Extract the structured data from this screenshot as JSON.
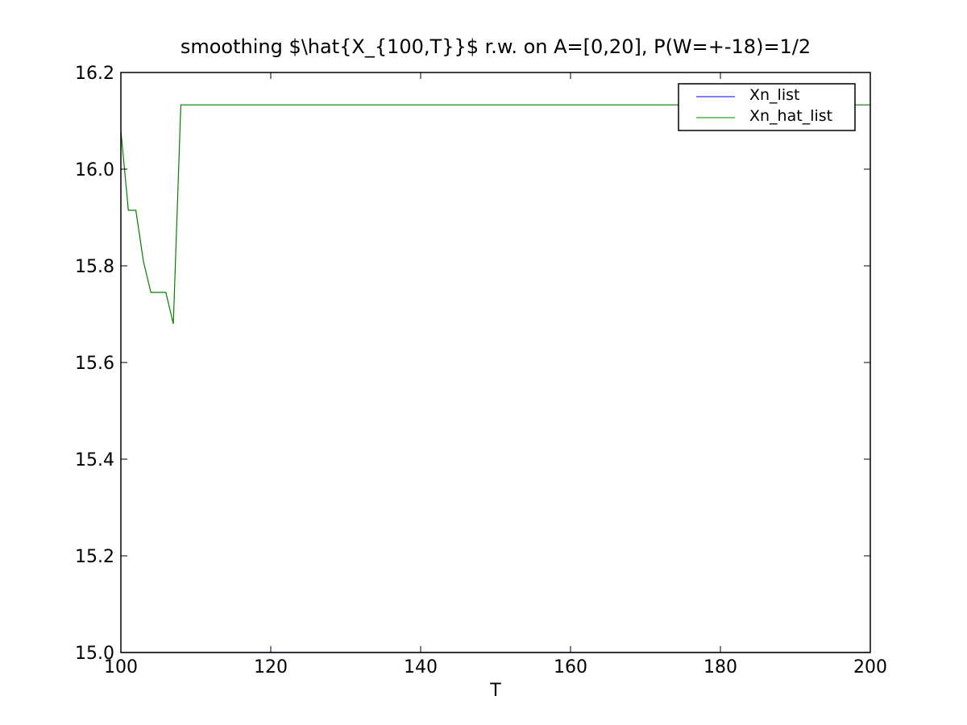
{
  "chart_data": {
    "type": "line",
    "title": "smoothing $\\hat{X_{100,T}}$ r.w. on A=[0,20], P(W=+-18)=1/2",
    "xlabel": "T",
    "ylabel": "",
    "xlim": [
      100,
      200
    ],
    "ylim": [
      15.0,
      16.2
    ],
    "xticks": [
      100,
      120,
      140,
      160,
      180,
      200
    ],
    "yticks": [
      15.0,
      15.2,
      15.4,
      15.6,
      15.8,
      16.0,
      16.2
    ],
    "xtick_labels": [
      "100",
      "120",
      "140",
      "160",
      "180",
      "200"
    ],
    "ytick_labels": [
      "15.0",
      "15.2",
      "15.4",
      "15.6",
      "15.8",
      "16.0",
      "16.2"
    ],
    "grid": false,
    "legend_position": "top-right",
    "series": [
      {
        "name": "Xn_list",
        "color": "#0000ff",
        "x": [
          100,
          200
        ],
        "y": [
          15.0,
          15.0
        ]
      },
      {
        "name": "Xn_hat_list",
        "color": "#008000",
        "x": [
          100,
          101,
          102,
          103,
          104,
          105,
          106,
          107,
          108,
          200
        ],
        "y": [
          16.08,
          15.915,
          15.915,
          15.81,
          15.745,
          15.745,
          15.745,
          15.68,
          16.133,
          16.133
        ]
      }
    ]
  }
}
